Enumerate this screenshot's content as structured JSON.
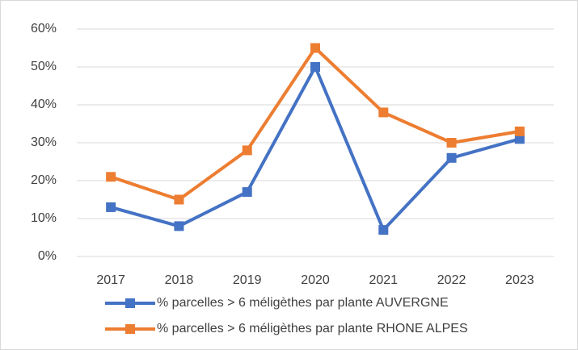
{
  "chart_data": {
    "type": "line",
    "categories": [
      "2017",
      "2018",
      "2019",
      "2020",
      "2021",
      "2022",
      "2023"
    ],
    "series": [
      {
        "name": "% parcelles > 6 méligèthes par plante AUVERGNE",
        "color": "#4472c4",
        "values": [
          13,
          8,
          17,
          50,
          7,
          26,
          31
        ]
      },
      {
        "name": "% parcelles > 6 méligèthes par plante RHONE ALPES",
        "color": "#ed7d31",
        "values": [
          21,
          15,
          28,
          55,
          38,
          30,
          33
        ]
      }
    ],
    "ylim": [
      0,
      60
    ],
    "yticks": [
      {
        "value": 0,
        "label": "0%"
      },
      {
        "value": 10,
        "label": "10%"
      },
      {
        "value": 20,
        "label": "20%"
      },
      {
        "value": 30,
        "label": "30%"
      },
      {
        "value": 40,
        "label": "40%"
      },
      {
        "value": 50,
        "label": "50%"
      },
      {
        "value": 60,
        "label": "60%"
      }
    ],
    "grid": true,
    "legend": "bottom"
  }
}
